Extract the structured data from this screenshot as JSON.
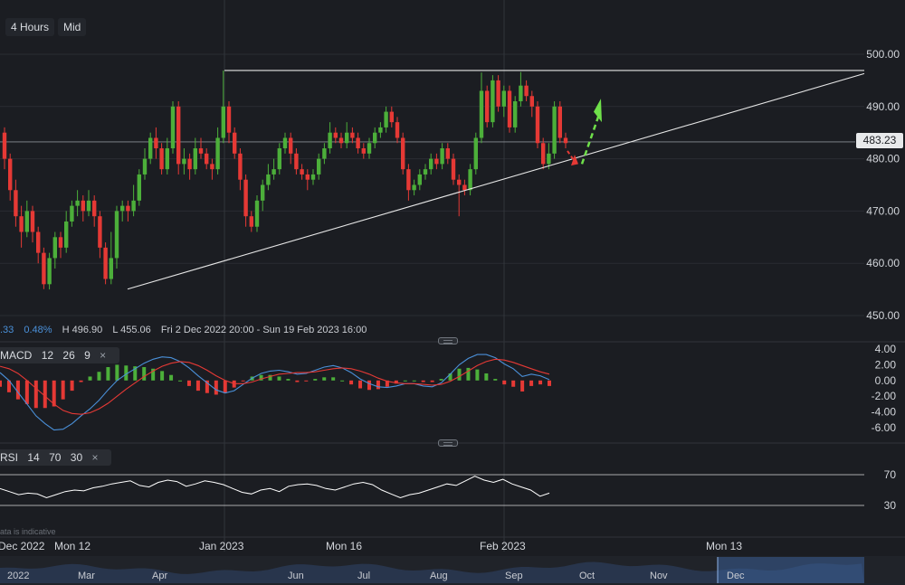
{
  "toolbar": {
    "interval": "4 Hours",
    "price_type": "Mid"
  },
  "stats": {
    "change_partial": ".33",
    "change_pct": "0.48%",
    "high": "H 496.90",
    "low": "L 455.06",
    "range": "Fri 2 Dec 2022 20:00 - Sun 19 Feb 2023 16:00"
  },
  "current_price_label": "483.23",
  "macd": {
    "label": "MACD",
    "params": [
      "12",
      "26",
      "9"
    ],
    "close": "×"
  },
  "rsi": {
    "label": "RSI",
    "params": [
      "14",
      "70",
      "30"
    ],
    "close": "×"
  },
  "disclaimer": "ata is indicative",
  "navigator_labels": [
    "2022",
    "Mar",
    "Apr",
    "Jun",
    "Jul",
    "Aug",
    "Sep",
    "Oct",
    "Nov",
    "Dec"
  ],
  "colors": {
    "up": "#4caf3a",
    "down": "#e53935",
    "background": "#1b1d22",
    "macd_line": "#4a90d9",
    "signal_line": "#e53935",
    "rsi_line": "#ffffff",
    "forecast_up": "#6fe04a",
    "forecast_down": "#e53935"
  },
  "chart_data": [
    {
      "type": "candlestick",
      "title": "",
      "price_axis": {
        "ticks": [
          450,
          460,
          470,
          480,
          490,
          500
        ],
        "range": [
          447,
          503
        ]
      },
      "date_labels": [
        "Dec 2022",
        "Mon 12",
        "Jan 2023",
        "Mon 16",
        "Feb 2023",
        "Mon 13"
      ],
      "current_price": 483.23,
      "high": 496.9,
      "low": 455.06,
      "trendlines": [
        {
          "name": "resistance",
          "from": [
            21,
            496.9
          ],
          "to": [
            130,
            496.9
          ]
        },
        {
          "name": "support",
          "from": [
            0,
            455.06
          ],
          "to": [
            130,
            496.3
          ]
        }
      ],
      "candles": [
        [
          485,
          480,
          486,
          478
        ],
        [
          480,
          474,
          481,
          472
        ],
        [
          474,
          469,
          476,
          467
        ],
        [
          469,
          466,
          471,
          463
        ],
        [
          466,
          470,
          472,
          465
        ],
        [
          470,
          466,
          471,
          464
        ],
        [
          466,
          462,
          467,
          460
        ],
        [
          462,
          456,
          463,
          455.06
        ],
        [
          456,
          461,
          462,
          455
        ],
        [
          461,
          465,
          466,
          459
        ],
        [
          465,
          463,
          466,
          461
        ],
        [
          463,
          468,
          470,
          462
        ],
        [
          468,
          471,
          472,
          467
        ],
        [
          471,
          472,
          474,
          469
        ],
        [
          472,
          470,
          473,
          468
        ],
        [
          470,
          472,
          474,
          469
        ],
        [
          472,
          469,
          473,
          467
        ],
        [
          469,
          463,
          470,
          461
        ],
        [
          463,
          457,
          464,
          456
        ],
        [
          457,
          461,
          466,
          456
        ],
        [
          461,
          470,
          471,
          459
        ],
        [
          470,
          471,
          472,
          468
        ],
        [
          471,
          470,
          472,
          468
        ],
        [
          470,
          472,
          475,
          469
        ],
        [
          472,
          477,
          478,
          471
        ],
        [
          477,
          480,
          482,
          476
        ],
        [
          480,
          484,
          485,
          479
        ],
        [
          484,
          482,
          486,
          480
        ],
        [
          482,
          478,
          483,
          477
        ],
        [
          478,
          482,
          484,
          477
        ],
        [
          482,
          490,
          491,
          481
        ],
        [
          490,
          479,
          491,
          477
        ],
        [
          479,
          480,
          482,
          477
        ],
        [
          480,
          478,
          481,
          476
        ],
        [
          478,
          482,
          484,
          477
        ],
        [
          482,
          481,
          484,
          480
        ],
        [
          481,
          479,
          482,
          478
        ],
        [
          479,
          478,
          480,
          476
        ],
        [
          478,
          484,
          486,
          477
        ],
        [
          484,
          490,
          496.9,
          483
        ],
        [
          490,
          485,
          491,
          483
        ],
        [
          485,
          481,
          486,
          480
        ],
        [
          481,
          476,
          482,
          474
        ],
        [
          476,
          469,
          477,
          467
        ],
        [
          469,
          467,
          470,
          466
        ],
        [
          467,
          472,
          473,
          466
        ],
        [
          472,
          475,
          476,
          470
        ],
        [
          475,
          477,
          479,
          474
        ],
        [
          477,
          478,
          480,
          476
        ],
        [
          478,
          482,
          483,
          477
        ],
        [
          482,
          484,
          485,
          481
        ],
        [
          484,
          481,
          485,
          479
        ],
        [
          481,
          478,
          482,
          477
        ],
        [
          478,
          477,
          479,
          476
        ],
        [
          477,
          476,
          478,
          474
        ],
        [
          476,
          477,
          478,
          475
        ],
        [
          477,
          480,
          481,
          476
        ],
        [
          480,
          482,
          483,
          479
        ],
        [
          482,
          485,
          487,
          481
        ],
        [
          485,
          484,
          486,
          483
        ],
        [
          484,
          483,
          485,
          482
        ],
        [
          483,
          485,
          487,
          482
        ],
        [
          485,
          484,
          486,
          483
        ],
        [
          484,
          482,
          485,
          481
        ],
        [
          482,
          481,
          483,
          480
        ],
        [
          481,
          483,
          484,
          480
        ],
        [
          483,
          485,
          486,
          482
        ],
        [
          485,
          486,
          487,
          484
        ],
        [
          486,
          489,
          490,
          485
        ],
        [
          489,
          487,
          490,
          486
        ],
        [
          487,
          484,
          488,
          483
        ],
        [
          484,
          478,
          485,
          477
        ],
        [
          478,
          474,
          479,
          472
        ],
        [
          474,
          475,
          476,
          473
        ],
        [
          475,
          477,
          478,
          474
        ],
        [
          477,
          478,
          479,
          476
        ],
        [
          478,
          480,
          481,
          477
        ],
        [
          480,
          479,
          481,
          478
        ],
        [
          479,
          482,
          483,
          478
        ],
        [
          482,
          480,
          483,
          479
        ],
        [
          480,
          476,
          481,
          475
        ],
        [
          476,
          475,
          477,
          469
        ],
        [
          475,
          474,
          476,
          473
        ],
        [
          474,
          478,
          479,
          473
        ],
        [
          478,
          484,
          485,
          477
        ],
        [
          484,
          493,
          496.5,
          483
        ],
        [
          493,
          487,
          494,
          486
        ],
        [
          487,
          495,
          496,
          486
        ],
        [
          495,
          490,
          496,
          489
        ],
        [
          490,
          493,
          494,
          488
        ],
        [
          493,
          486,
          494,
          485
        ],
        [
          486,
          491,
          492,
          485
        ],
        [
          491,
          494,
          496.6,
          490
        ],
        [
          494,
          492,
          495,
          491
        ],
        [
          492,
          490,
          493,
          488
        ],
        [
          490,
          483,
          491,
          482
        ],
        [
          483,
          479,
          484,
          478
        ],
        [
          479,
          481,
          483,
          478
        ],
        [
          481,
          490,
          491,
          480
        ],
        [
          490,
          484,
          491,
          483
        ],
        [
          484,
          483,
          485,
          482
        ]
      ]
    },
    {
      "type": "line",
      "name": "MACD",
      "y_ticks": [
        -6,
        -4,
        -2,
        0,
        2,
        4
      ],
      "series": [
        {
          "name": "MACD",
          "values": [
            1,
            0,
            -1.5,
            -3,
            -4.5,
            -5.5,
            -6.3,
            -6.2,
            -5.5,
            -4.5,
            -3.6,
            -2.5,
            -1.2,
            0,
            0.8,
            1.5,
            2.2,
            2.7,
            3,
            2.9,
            2.4,
            1.6,
            0.6,
            -0.3,
            -1.2,
            -1.6,
            -1.3,
            -0.5,
            0.3,
            0.9,
            1.2,
            1.3,
            1.1,
            0.8,
            0.9,
            1.3,
            1.7,
            1.9,
            1.6,
            1,
            0.2,
            -0.4,
            -0.8,
            -0.9,
            -0.7,
            -0.4,
            -0.4,
            -0.7,
            -0.8,
            -0.3,
            0.8,
            2,
            2.8,
            3.3,
            3.3,
            2.9,
            2.1,
            1.5,
            0.5,
            0.8,
            0.6,
            0.1
          ]
        },
        {
          "name": "Signal",
          "values": [
            1.8,
            1.5,
            0.9,
            0,
            -1,
            -2,
            -3,
            -3.8,
            -4.2,
            -4.3,
            -4.1,
            -3.6,
            -2.9,
            -2,
            -1.1,
            -0.3,
            0.5,
            1.2,
            1.8,
            2.2,
            2.4,
            2.3,
            1.9,
            1.3,
            0.6,
            0,
            -0.4,
            -0.4,
            -0.2,
            0.2,
            0.5,
            0.8,
            0.9,
            1,
            1,
            1.1,
            1.3,
            1.5,
            1.6,
            1.5,
            1.2,
            0.8,
            0.3,
            -0.1,
            -0.3,
            -0.4,
            -0.4,
            -0.5,
            -0.6,
            -0.5,
            -0.1,
            0.5,
            1.2,
            1.9,
            2.4,
            2.7,
            2.6,
            2.3,
            1.9,
            1.5,
            1.1,
            0.8
          ]
        },
        {
          "name": "Histogram",
          "values": [
            -0.8,
            -1.5,
            -2.4,
            -3,
            -3.5,
            -3.5,
            -3.3,
            -2.4,
            -1.3,
            -0.2,
            0.5,
            1.1,
            1.7,
            2,
            1.9,
            1.8,
            1.7,
            1.5,
            1.2,
            0.7,
            0,
            -0.7,
            -1.3,
            -1.6,
            -1.8,
            -1.6,
            -0.9,
            -0.1,
            0.5,
            0.7,
            0.7,
            0.5,
            0.2,
            -0.2,
            -0.1,
            0.2,
            0.4,
            0.4,
            0,
            -0.5,
            -1,
            -1.2,
            -1.1,
            -0.8,
            -0.4,
            0,
            0,
            -0.2,
            -0.2,
            0.2,
            0.9,
            1.5,
            1.6,
            1.4,
            0.9,
            0.2,
            -0.5,
            -0.8,
            -1.4,
            -0.7,
            -0.5,
            -0.7
          ]
        }
      ]
    },
    {
      "type": "line",
      "name": "RSI",
      "y_ticks": [
        30,
        70
      ],
      "series": [
        {
          "name": "RSI",
          "values": [
            52,
            48,
            44,
            46,
            45,
            40,
            44,
            48,
            50,
            49,
            53,
            55,
            58,
            60,
            62,
            56,
            54,
            60,
            63,
            61,
            55,
            58,
            62,
            60,
            57,
            52,
            47,
            45,
            50,
            52,
            48,
            55,
            57,
            58,
            56,
            52,
            50,
            54,
            58,
            60,
            57,
            50,
            45,
            40,
            44,
            46,
            50,
            54,
            58,
            56,
            62,
            68,
            63,
            60,
            64,
            58,
            54,
            50,
            42,
            46
          ]
        }
      ]
    }
  ]
}
